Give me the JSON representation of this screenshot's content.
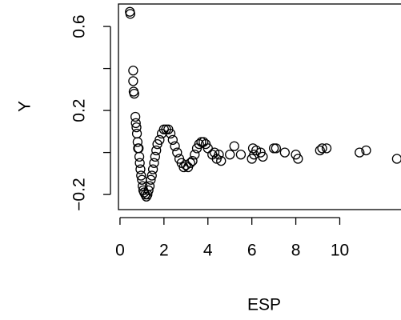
{
  "chart_data": {
    "type": "scatter",
    "xlabel": "ESP",
    "ylabel": "Y",
    "color": "#000000",
    "xlim": [
      -0.07,
      12.75
    ],
    "ylim": [
      -0.272,
      0.707
    ],
    "xticks": [
      0,
      2,
      4,
      6,
      8,
      10
    ],
    "yticks": [
      {
        "value": -0.2,
        "label": "−0.2"
      },
      {
        "value": 0.2,
        "label": "0.2"
      },
      {
        "value": 0.6,
        "label": "0.6"
      }
    ],
    "yticks_unlabeled": [
      0,
      0.4
    ],
    "x": [
      0.45,
      0.47,
      0.6,
      0.6,
      0.62,
      0.65,
      0.7,
      0.72,
      0.75,
      0.77,
      0.8,
      0.82,
      0.85,
      0.88,
      0.9,
      0.93,
      0.96,
      1.0,
      1.03,
      1.06,
      1.1,
      1.15,
      1.2,
      1.25,
      1.3,
      1.35,
      1.4,
      1.45,
      1.5,
      1.55,
      1.6,
      1.65,
      1.7,
      1.8,
      1.9,
      2.0,
      2.1,
      2.2,
      2.3,
      2.4,
      2.5,
      2.6,
      2.7,
      2.8,
      2.9,
      3.0,
      3.1,
      3.2,
      3.3,
      3.4,
      3.5,
      3.6,
      3.7,
      3.8,
      3.9,
      4.0,
      4.2,
      4.3,
      4.4,
      4.5,
      4.6,
      5.0,
      5.2,
      5.5,
      6.0,
      6.05,
      6.1,
      6.2,
      6.4,
      6.5,
      7.0,
      7.1,
      7.5,
      8.0,
      8.1,
      9.1,
      9.2,
      9.4,
      10.9,
      11.2,
      12.6
    ],
    "values": [
      0.67,
      0.66,
      0.39,
      0.34,
      0.29,
      0.28,
      0.17,
      0.14,
      0.12,
      0.09,
      0.05,
      0.02,
      0.02,
      -0.02,
      -0.05,
      -0.08,
      -0.11,
      -0.13,
      -0.16,
      -0.18,
      -0.19,
      -0.2,
      -0.21,
      -0.2,
      -0.18,
      -0.16,
      -0.13,
      -0.11,
      -0.08,
      -0.05,
      -0.02,
      0.01,
      0.04,
      0.06,
      0.09,
      0.11,
      0.11,
      0.11,
      0.09,
      0.06,
      0.03,
      0.0,
      -0.03,
      -0.05,
      -0.07,
      -0.06,
      -0.07,
      -0.05,
      -0.04,
      -0.01,
      0.02,
      0.04,
      0.05,
      0.05,
      0.04,
      0.02,
      -0.01,
      0.0,
      -0.03,
      -0.01,
      -0.04,
      -0.01,
      0.03,
      -0.01,
      -0.03,
      0.02,
      -0.01,
      0.01,
      0.0,
      -0.02,
      0.02,
      0.02,
      0.0,
      -0.01,
      -0.03,
      0.01,
      0.02,
      0.02,
      0.0,
      0.01,
      -0.03
    ]
  }
}
